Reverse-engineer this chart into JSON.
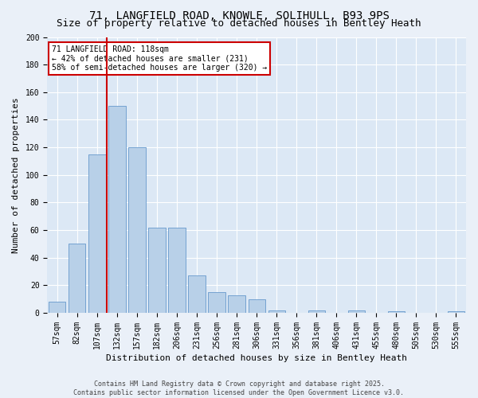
{
  "title1": "71, LANGFIELD ROAD, KNOWLE, SOLIHULL, B93 9PS",
  "title2": "Size of property relative to detached houses in Bentley Heath",
  "xlabel": "Distribution of detached houses by size in Bentley Heath",
  "ylabel": "Number of detached properties",
  "footer1": "Contains HM Land Registry data © Crown copyright and database right 2025.",
  "footer2": "Contains public sector information licensed under the Open Government Licence v3.0.",
  "categories": [
    "57sqm",
    "82sqm",
    "107sqm",
    "132sqm",
    "157sqm",
    "182sqm",
    "206sqm",
    "231sqm",
    "256sqm",
    "281sqm",
    "306sqm",
    "331sqm",
    "356sqm",
    "381sqm",
    "406sqm",
    "431sqm",
    "455sqm",
    "480sqm",
    "505sqm",
    "530sqm",
    "555sqm"
  ],
  "values": [
    8,
    50,
    115,
    150,
    120,
    62,
    62,
    27,
    15,
    13,
    10,
    2,
    0,
    2,
    0,
    2,
    0,
    1,
    0,
    0,
    1
  ],
  "bar_color": "#b8d0e8",
  "bar_edge_color": "#6699cc",
  "vline_x": 2.5,
  "vline_color": "#cc0000",
  "annotation_text": "71 LANGFIELD ROAD: 118sqm\n← 42% of detached houses are smaller (231)\n58% of semi-detached houses are larger (320) →",
  "annotation_bbox_edgecolor": "#cc0000",
  "ylim": [
    0,
    200
  ],
  "yticks": [
    0,
    20,
    40,
    60,
    80,
    100,
    120,
    140,
    160,
    180,
    200
  ],
  "bg_color": "#eaf0f8",
  "plot_bg_color": "#dce8f5",
  "grid_color": "#ffffff",
  "title1_fontsize": 10,
  "title2_fontsize": 9,
  "axis_label_fontsize": 8,
  "tick_fontsize": 7,
  "footer_fontsize": 6
}
